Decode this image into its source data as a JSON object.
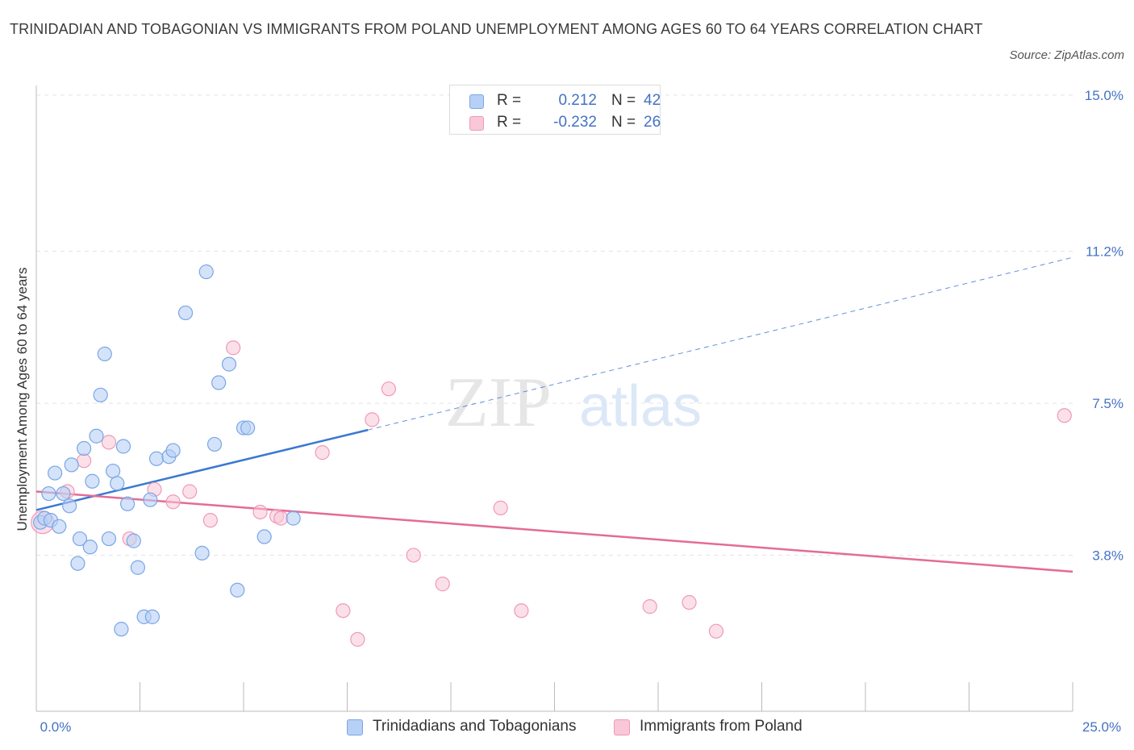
{
  "title": "TRINIDADIAN AND TOBAGONIAN VS IMMIGRANTS FROM POLAND UNEMPLOYMENT AMONG AGES 60 TO 64 YEARS CORRELATION CHART",
  "source": "Source: ZipAtlas.com",
  "watermark": {
    "zip": "ZIP",
    "atlas": "atlas"
  },
  "legend_top": [
    {
      "r_label": "R =",
      "r_value": "0.212",
      "n_label": "N =",
      "n_value": "42"
    },
    {
      "r_label": "R =",
      "r_value": "-0.232",
      "n_label": "N =",
      "n_value": "26"
    }
  ],
  "colors": {
    "blue_fill": "#b7d0f5",
    "blue_stroke": "#7aa6e6",
    "blue_line": "#3a78d1",
    "pink_fill": "#f9c7d7",
    "pink_stroke": "#ee9ab6",
    "pink_line": "#e36c96",
    "grid": "#e3e3e3",
    "axis": "#bbbbbb",
    "tick_label": "#4472c4"
  },
  "chart_data": {
    "type": "scatter",
    "title": "TRINIDADIAN AND TOBAGONIAN VS IMMIGRANTS FROM POLAND UNEMPLOYMENT AMONG AGES 60 TO 64 YEARS CORRELATION CHART",
    "xlabel": "",
    "ylabel": "Unemployment Among Ages 60 to 64 years",
    "xlim": [
      0,
      25
    ],
    "ylim": [
      0,
      15
    ],
    "x_tick_labels": [
      "0.0%",
      "25.0%"
    ],
    "y_ticks": [
      3.8,
      7.5,
      11.2,
      15.0
    ],
    "y_tick_labels": [
      "3.8%",
      "7.5%",
      "11.2%",
      "15.0%"
    ],
    "grid": true,
    "legend_position": "bottom",
    "series": [
      {
        "name": "Trinidadians and Tobagonians",
        "color": "blue",
        "trend": {
          "x": [
            0,
            8
          ],
          "y": [
            4.9,
            6.85
          ],
          "dashed_extension_to": [
            25,
            11.05
          ]
        },
        "points": [
          [
            0.1,
            4.6
          ],
          [
            0.2,
            4.7
          ],
          [
            0.3,
            5.3
          ],
          [
            0.35,
            4.65
          ],
          [
            0.45,
            5.8
          ],
          [
            0.55,
            4.5
          ],
          [
            0.65,
            5.3
          ],
          [
            0.8,
            5.0
          ],
          [
            0.85,
            6.0
          ],
          [
            1.0,
            3.6
          ],
          [
            1.05,
            4.2
          ],
          [
            1.15,
            6.4
          ],
          [
            1.3,
            4.0
          ],
          [
            1.35,
            5.6
          ],
          [
            1.45,
            6.7
          ],
          [
            1.55,
            7.7
          ],
          [
            1.65,
            8.7
          ],
          [
            1.75,
            4.2
          ],
          [
            1.85,
            5.85
          ],
          [
            1.95,
            5.55
          ],
          [
            2.05,
            2.0
          ],
          [
            2.1,
            6.45
          ],
          [
            2.2,
            5.05
          ],
          [
            2.35,
            4.15
          ],
          [
            2.45,
            3.5
          ],
          [
            2.6,
            2.3
          ],
          [
            2.75,
            5.15
          ],
          [
            2.8,
            2.3
          ],
          [
            2.9,
            6.15
          ],
          [
            3.2,
            6.2
          ],
          [
            3.3,
            6.35
          ],
          [
            3.6,
            9.7
          ],
          [
            4.0,
            3.85
          ],
          [
            4.1,
            10.7
          ],
          [
            4.3,
            6.5
          ],
          [
            4.4,
            8.0
          ],
          [
            4.65,
            8.45
          ],
          [
            4.85,
            2.95
          ],
          [
            5.0,
            6.9
          ],
          [
            5.1,
            6.9
          ],
          [
            5.5,
            4.25
          ],
          [
            6.2,
            4.7
          ]
        ]
      },
      {
        "name": "Immigrants from Poland",
        "color": "pink",
        "trend": {
          "x": [
            0,
            25
          ],
          "y": [
            5.35,
            3.4
          ]
        },
        "points": [
          [
            0.15,
            4.6
          ],
          [
            0.75,
            5.35
          ],
          [
            1.15,
            6.1
          ],
          [
            1.75,
            6.55
          ],
          [
            2.25,
            4.2
          ],
          [
            2.85,
            5.4
          ],
          [
            3.3,
            5.1
          ],
          [
            3.7,
            5.35
          ],
          [
            4.2,
            4.65
          ],
          [
            4.75,
            8.85
          ],
          [
            5.4,
            4.85
          ],
          [
            5.8,
            4.75
          ],
          [
            5.9,
            4.7
          ],
          [
            6.9,
            6.3
          ],
          [
            7.4,
            2.45
          ],
          [
            7.75,
            1.75
          ],
          [
            8.1,
            7.1
          ],
          [
            8.5,
            7.85
          ],
          [
            9.1,
            3.8
          ],
          [
            9.8,
            3.1
          ],
          [
            11.2,
            4.95
          ],
          [
            11.7,
            2.45
          ],
          [
            14.8,
            2.55
          ],
          [
            15.75,
            2.65
          ],
          [
            16.4,
            1.95
          ],
          [
            24.8,
            7.2
          ]
        ]
      }
    ]
  }
}
